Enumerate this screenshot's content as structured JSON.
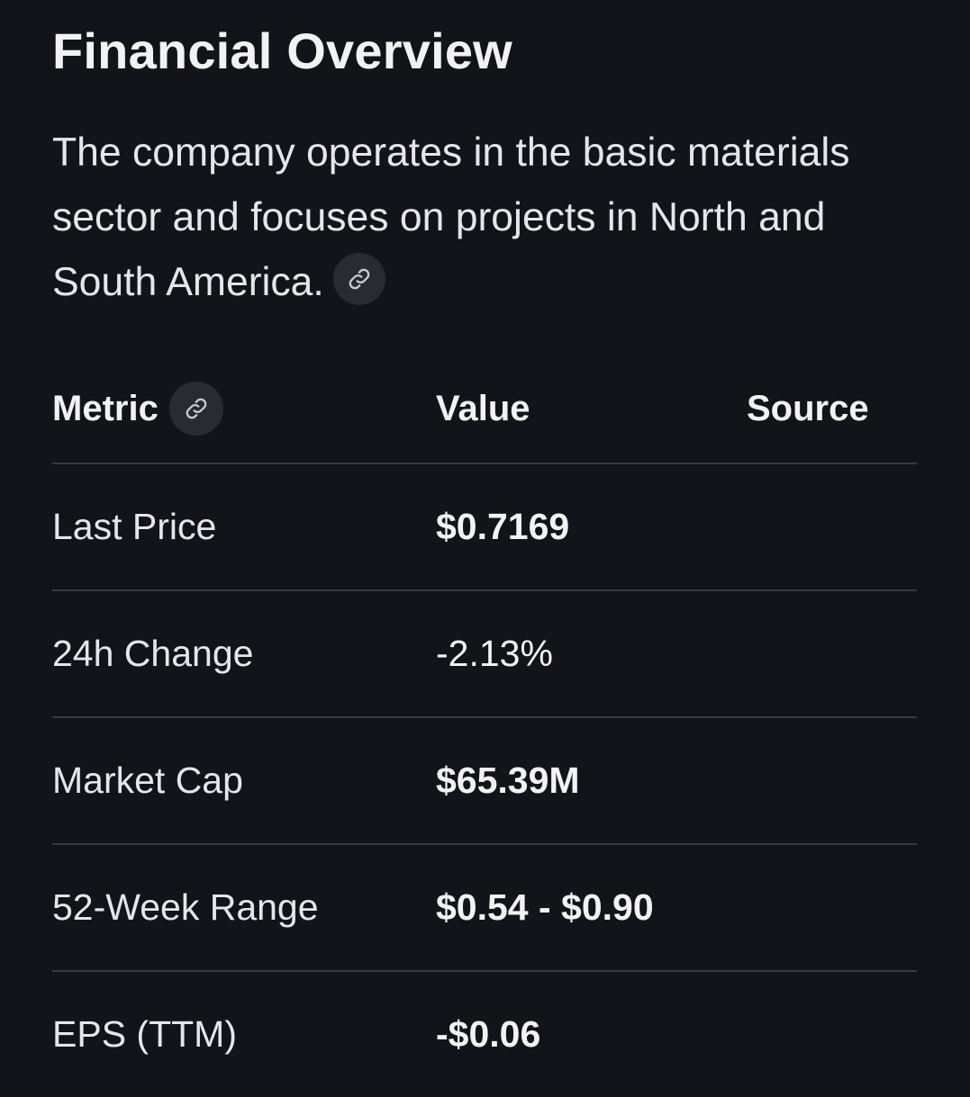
{
  "section": {
    "title": "Financial Overview",
    "description": "The company operates in the basic materials sector and focuses on projects in North and South America.",
    "link_icon": "link-icon"
  },
  "table": {
    "headers": {
      "metric": "Metric",
      "value": "Value",
      "source": "Source"
    },
    "rows": [
      {
        "metric": "Last Price",
        "value": "$0.7169",
        "value_bold": true,
        "source": ""
      },
      {
        "metric": "24h Change",
        "value": "-2.13%",
        "value_bold": false,
        "source": ""
      },
      {
        "metric": "Market Cap",
        "value": "$65.39M",
        "value_bold": true,
        "source": ""
      },
      {
        "metric": "52-Week Range",
        "value": "$0.54 - $0.90",
        "value_bold": true,
        "source": ""
      },
      {
        "metric": "EPS (TTM)",
        "value": "-$0.06",
        "value_bold": true,
        "source": ""
      }
    ]
  },
  "colors": {
    "background": "#131419",
    "text": "#ececef",
    "divider": "#3a3b42",
    "icon_button": "#2a2b32"
  }
}
